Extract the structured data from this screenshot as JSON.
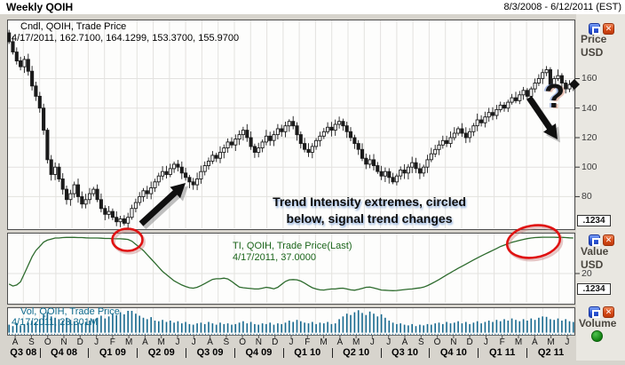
{
  "window": {
    "title": "Weekly QOIH",
    "date_range": "8/3/2008 - 6/12/2011 (EST)"
  },
  "panes": {
    "price": {
      "label_line1": "Cndl, QOIH, Trade Price",
      "label_line2": "4/17/2011, 162.7100, 164.1299, 153.3700, 155.9700",
      "axis_title": "Price",
      "axis_unit": "USD",
      "ticks": [
        160,
        140,
        120,
        100,
        80
      ],
      "decimal_box": ".1234"
    },
    "ti": {
      "label_line1": "TI, QOIH, Trade Price(Last)",
      "label_line2": "4/17/2011, 37.0000",
      "axis_title": "Value",
      "axis_unit": "USD",
      "ticks": [
        20
      ],
      "decimal_box": ".1234"
    },
    "volume": {
      "label_line1": "Vol, QOIH, Trade Price",
      "label_line2": "4/17/2011, 23.301M",
      "axis_title": "Volume"
    }
  },
  "annotations": {
    "note_line1": "Trend Intensity extremes, circled",
    "note_line2": "below, signal trend changes",
    "question_mark": "?"
  },
  "axis": {
    "months": [
      "A",
      "S",
      "O",
      "N",
      "D",
      "J",
      "F",
      "M",
      "A",
      "M",
      "J",
      "J",
      "A",
      "S",
      "O",
      "N",
      "D",
      "J",
      "F",
      "M",
      "A",
      "M",
      "J",
      "J",
      "A",
      "S",
      "O",
      "N",
      "D",
      "J",
      "F",
      "M",
      "A",
      "M",
      "J"
    ],
    "quarters": [
      "Q3 08",
      "Q4 08",
      "Q1 09",
      "Q2 09",
      "Q3 09",
      "Q4 09",
      "Q1 10",
      "Q2 10",
      "Q3 10",
      "Q4 10",
      "Q1 11",
      "Q2 11"
    ],
    "quarter_start_month": [
      0,
      2,
      5,
      8,
      11,
      14,
      17,
      20,
      23,
      26,
      29,
      32
    ]
  },
  "colors": {
    "candle": "#1a1a1a",
    "ti_line": "#2d6b2d",
    "volume_bar": "#16688e",
    "annotation_red": "#e01212",
    "grid": "#e3e2df",
    "icon_blue": "#2c55d6",
    "icon_red": "#d64a16",
    "status_green": "#128212"
  },
  "chart_data": [
    {
      "type": "candlestick",
      "title": "Cndl, QOIH, Trade Price",
      "symbol": "QOIH",
      "interval": "weekly",
      "x_range": "8/3/2008 - 6/12/2011",
      "ylabel": "Price USD",
      "ylim": [
        58,
        200
      ],
      "yticks": [
        80,
        100,
        120,
        140,
        160
      ],
      "grid": true,
      "last_bar": {
        "date": "4/17/2011",
        "open": 162.71,
        "high": 164.1299,
        "low": 153.37,
        "close": 155.97
      },
      "last_price_marker": 155.97,
      "closes": [
        185,
        178,
        172,
        168,
        173,
        165,
        155,
        148,
        140,
        125,
        105,
        95,
        100,
        92,
        85,
        78,
        82,
        88,
        80,
        75,
        78,
        82,
        85,
        78,
        72,
        68,
        70,
        66,
        63,
        65,
        62,
        66,
        72,
        76,
        80,
        84,
        82,
        86,
        90,
        94,
        97,
        95,
        99,
        102,
        100,
        96,
        93,
        90,
        88,
        92,
        97,
        101,
        104,
        108,
        106,
        110,
        113,
        117,
        115,
        119,
        122,
        125,
        120,
        114,
        110,
        113,
        117,
        121,
        118,
        122,
        126,
        124,
        128,
        131,
        128,
        122,
        116,
        112,
        110,
        114,
        118,
        121,
        124,
        127,
        125,
        129,
        131,
        128,
        124,
        120,
        116,
        112,
        106,
        102,
        105,
        101,
        97,
        94,
        97,
        93,
        90,
        94,
        98,
        96,
        100,
        103,
        99,
        96,
        100,
        105,
        109,
        112,
        115,
        118,
        116,
        120,
        123,
        126,
        123,
        120,
        124,
        128,
        132,
        130,
        134,
        137,
        135,
        139,
        142,
        140,
        144,
        147,
        145,
        149,
        152,
        148,
        153,
        157,
        160,
        164,
        166,
        156,
        160,
        162,
        157,
        153,
        156,
        155
      ]
    },
    {
      "type": "line",
      "title": "TI, QOIH, Trade Price(Last)",
      "ylabel": "Value USD",
      "ylim": [
        5.5,
        39.5
      ],
      "yticks": [
        20
      ],
      "last_value": 37.0,
      "values": [
        15,
        14,
        14.5,
        16,
        20,
        24,
        28,
        31,
        33,
        35,
        36,
        36.5,
        37,
        37,
        37.2,
        37.3,
        37.3,
        37.3,
        37.2,
        37.2,
        37.1,
        37,
        37,
        37,
        36.9,
        36.8,
        36.8,
        36.7,
        36.6,
        36.6,
        36.5,
        36.3,
        35.5,
        34,
        32.5,
        31,
        29,
        27,
        25,
        23,
        21,
        19.5,
        18,
        16.5,
        15.5,
        14.5,
        13.8,
        13.2,
        13,
        13.4,
        14.2,
        15.2,
        16.2,
        17.2,
        17.5,
        17.5,
        17.8,
        17.4,
        16.2,
        14.8,
        13.5,
        13.2,
        13,
        12.8,
        12.6,
        12.6,
        13,
        13.4,
        13.1,
        12.7,
        13.4,
        14.8,
        16.2,
        17,
        17.1,
        17,
        16.4,
        15.4,
        14.2,
        13.2,
        12.6,
        12.2,
        12.1,
        12.4,
        12.6,
        12.6,
        12.9,
        13,
        12.6,
        12.2,
        12,
        12.4,
        12.9,
        13.4,
        13.5,
        13.1,
        12.6,
        12.1,
        12,
        11.9,
        11.8,
        11.9,
        12.1,
        12.3,
        12.5,
        12.6,
        12.9,
        13.1,
        13.5,
        14.2,
        15.1,
        16.1,
        17.1,
        18.2,
        19.3,
        20.4,
        21.5,
        22.5,
        23.5,
        24.5,
        25.5,
        26.5,
        27.5,
        28.4,
        29.3,
        30.2,
        31.1,
        32,
        32.9,
        33.6,
        34.3,
        34.9,
        35.4,
        35.9,
        36.3,
        36.7,
        37,
        37.2,
        37.3,
        37.4,
        37.4,
        37.4,
        37.4,
        37.3,
        37.3,
        37.2,
        37.1,
        37
      ]
    },
    {
      "type": "bar",
      "title": "Vol, QOIH, Trade Price",
      "ylabel": "Volume",
      "unit": "millions",
      "last_value": 23.301,
      "values": [
        12,
        10,
        14,
        11,
        13,
        15,
        18,
        16,
        20,
        26,
        30,
        24,
        22,
        20,
        18,
        22,
        19,
        17,
        15,
        14,
        16,
        18,
        20,
        22,
        25,
        21,
        24,
        28,
        26,
        30,
        27,
        32,
        32,
        28,
        25,
        22,
        20,
        23,
        18,
        17,
        19,
        16,
        18,
        15,
        17,
        14,
        16,
        13,
        12,
        14,
        15,
        13,
        16,
        14,
        12,
        15,
        13,
        14,
        12,
        13,
        15,
        17,
        14,
        16,
        13,
        12,
        14,
        13,
        15,
        12,
        14,
        13,
        15,
        18,
        16,
        19,
        17,
        15,
        14,
        16,
        13,
        15,
        14,
        16,
        13,
        14,
        20,
        24,
        28,
        26,
        30,
        33,
        29,
        26,
        31,
        28,
        24,
        27,
        22,
        18,
        15,
        13,
        14,
        12,
        11,
        13,
        10,
        12,
        11,
        13,
        12,
        14,
        15,
        13,
        16,
        14,
        15,
        17,
        14,
        16,
        13,
        15,
        17,
        14,
        16,
        18,
        16,
        19,
        17,
        20,
        18,
        21,
        19,
        17,
        20,
        18,
        21,
        19,
        22,
        24,
        23.301,
        20,
        19,
        21,
        18,
        20,
        17,
        16
      ]
    }
  ]
}
